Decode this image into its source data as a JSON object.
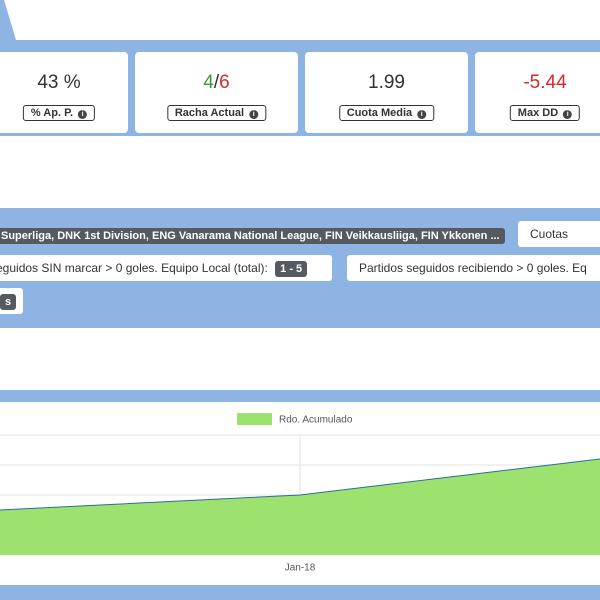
{
  "stats": [
    {
      "value": "43 %",
      "label": "% Ap. P."
    },
    {
      "value_parts": [
        "4",
        "/",
        "6"
      ],
      "label": "Racha Actual"
    },
    {
      "value": "1.99",
      "label": "Cuota Media"
    },
    {
      "value": "-5.44",
      "label": "Max DD"
    }
  ],
  "filters": {
    "leagues": "Superliga, DNK 1st Division, ENG Vanarama National League, FIN Veikkausliiga, FIN Ykkonen ...",
    "odds": "Cuotas",
    "home_streak": {
      "text": "eguidos SIN marcar > 0 goles. Equipo Local (total):",
      "badge": "1 - 5"
    },
    "away_streak": {
      "text": "Partidos seguidos recibiendo > 0 goles. Eq"
    },
    "extra": {
      "badge": "s"
    }
  },
  "chart_data": {
    "type": "area",
    "categories": [
      null,
      "Jan-18",
      null
    ],
    "series": [
      {
        "name": "Rdo. Acumulado",
        "color": "#9de26f",
        "line_color": "#2d6a9f",
        "values": [
          1.5,
          2,
          3.2
        ]
      }
    ],
    "ylim": [
      0,
      4
    ],
    "yticks": [
      0,
      1,
      2,
      3,
      4
    ],
    "grid": true
  }
}
